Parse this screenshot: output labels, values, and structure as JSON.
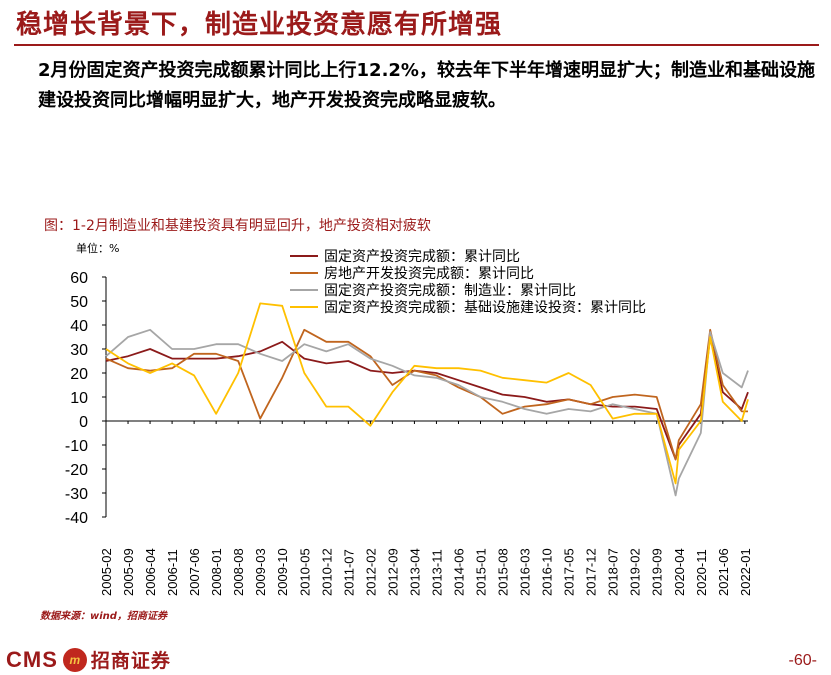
{
  "slide": {
    "title": "稳增长背景下，制造业投资意愿有所增强",
    "lead": "2月份固定资产投资完成额累计同比上行12.2%，较去年下半年增速明显扩大；制造业和基础设施建设投资同比增幅明显扩大，地产开发投资完成略显疲软。",
    "figure_caption": "图：1-2月制造业和基建投资具有明显回升，地产投资相对疲软",
    "unit_label": "单位：%",
    "source": "数据来源：wind，招商证券",
    "logo_text": "CMS",
    "logo_mark_text": "m",
    "logo_cn": "招商证券",
    "page_number": "-60-"
  },
  "colors": {
    "brand": "#9b1a1a",
    "total": "#8b1a1a",
    "realestate": "#c0651e",
    "manufacturing": "#a6a6a6",
    "infrastructure": "#ffc000"
  },
  "chart_data": {
    "type": "line",
    "title": "",
    "xlabel": "",
    "ylabel": "单位：%",
    "ylim": [
      -40,
      60
    ],
    "yticks": [
      -40,
      -30,
      -20,
      -10,
      0,
      10,
      20,
      30,
      40,
      50,
      60
    ],
    "x_tick_labels": [
      "2005-02",
      "2005-09",
      "2006-04",
      "2006-11",
      "2007-06",
      "2008-01",
      "2008-08",
      "2009-03",
      "2009-10",
      "2010-05",
      "2010-12",
      "2011-07",
      "2012-02",
      "2012-09",
      "2013-04",
      "2013-11",
      "2014-06",
      "2015-01",
      "2015-08",
      "2016-03",
      "2016-10",
      "2017-05",
      "2017-12",
      "2018-07",
      "2019-02",
      "2019-09",
      "2020-04",
      "2020-11",
      "2021-06",
      "2022-01"
    ],
    "x_start": "2005-02",
    "x_end": "2022-02",
    "legend_position": "top",
    "grid": false,
    "series": [
      {
        "name": "固定资产投资完成额：累计同比",
        "color_key": "total",
        "points": [
          [
            "2005-02",
            25
          ],
          [
            "2005-09",
            27
          ],
          [
            "2006-04",
            30
          ],
          [
            "2006-11",
            26
          ],
          [
            "2007-06",
            26
          ],
          [
            "2008-01",
            26
          ],
          [
            "2008-08",
            27
          ],
          [
            "2009-03",
            29
          ],
          [
            "2009-10",
            33
          ],
          [
            "2010-05",
            26
          ],
          [
            "2010-12",
            24
          ],
          [
            "2011-07",
            25
          ],
          [
            "2012-02",
            21
          ],
          [
            "2012-09",
            20
          ],
          [
            "2013-04",
            21
          ],
          [
            "2013-11",
            20
          ],
          [
            "2014-06",
            17
          ],
          [
            "2015-01",
            14
          ],
          [
            "2015-08",
            11
          ],
          [
            "2016-03",
            10
          ],
          [
            "2016-10",
            8
          ],
          [
            "2017-05",
            9
          ],
          [
            "2017-12",
            7
          ],
          [
            "2018-07",
            6
          ],
          [
            "2019-02",
            6
          ],
          [
            "2019-09",
            5
          ],
          [
            "2020-03",
            -16
          ],
          [
            "2020-04",
            -10
          ],
          [
            "2020-11",
            3
          ],
          [
            "2021-02",
            35
          ],
          [
            "2021-06",
            12
          ],
          [
            "2021-12",
            5
          ],
          [
            "2022-02",
            12
          ]
        ]
      },
      {
        "name": "房地产开发投资完成额：累计同比",
        "color_key": "realestate",
        "points": [
          [
            "2005-02",
            26
          ],
          [
            "2005-09",
            22
          ],
          [
            "2006-04",
            21
          ],
          [
            "2006-11",
            22
          ],
          [
            "2007-06",
            28
          ],
          [
            "2008-01",
            28
          ],
          [
            "2008-08",
            25
          ],
          [
            "2009-03",
            1
          ],
          [
            "2009-10",
            18
          ],
          [
            "2010-05",
            38
          ],
          [
            "2010-12",
            33
          ],
          [
            "2011-07",
            33
          ],
          [
            "2012-02",
            27
          ],
          [
            "2012-09",
            15
          ],
          [
            "2013-04",
            21
          ],
          [
            "2013-11",
            19
          ],
          [
            "2014-06",
            14
          ],
          [
            "2015-01",
            10
          ],
          [
            "2015-08",
            3
          ],
          [
            "2016-03",
            6
          ],
          [
            "2016-10",
            7
          ],
          [
            "2017-05",
            9
          ],
          [
            "2017-12",
            7
          ],
          [
            "2018-07",
            10
          ],
          [
            "2019-02",
            11
          ],
          [
            "2019-09",
            10
          ],
          [
            "2020-03",
            -16
          ],
          [
            "2020-04",
            -8
          ],
          [
            "2020-11",
            7
          ],
          [
            "2021-02",
            38
          ],
          [
            "2021-06",
            15
          ],
          [
            "2021-12",
            4
          ],
          [
            "2022-02",
            4
          ]
        ]
      },
      {
        "name": "固定资产投资完成额：制造业：累计同比",
        "color_key": "manufacturing",
        "points": [
          [
            "2005-02",
            27
          ],
          [
            "2005-09",
            35
          ],
          [
            "2006-04",
            38
          ],
          [
            "2006-11",
            30
          ],
          [
            "2007-06",
            30
          ],
          [
            "2008-01",
            32
          ],
          [
            "2008-08",
            32
          ],
          [
            "2009-03",
            28
          ],
          [
            "2009-10",
            25
          ],
          [
            "2010-05",
            32
          ],
          [
            "2010-12",
            29
          ],
          [
            "2011-07",
            32
          ],
          [
            "2012-02",
            26
          ],
          [
            "2012-09",
            23
          ],
          [
            "2013-04",
            19
          ],
          [
            "2013-11",
            18
          ],
          [
            "2014-06",
            15
          ],
          [
            "2015-01",
            10
          ],
          [
            "2015-08",
            8
          ],
          [
            "2016-03",
            5
          ],
          [
            "2016-10",
            3
          ],
          [
            "2017-05",
            5
          ],
          [
            "2017-12",
            4
          ],
          [
            "2018-07",
            7
          ],
          [
            "2019-02",
            5
          ],
          [
            "2019-09",
            3
          ],
          [
            "2020-03",
            -31
          ],
          [
            "2020-04",
            -24
          ],
          [
            "2020-11",
            -5
          ],
          [
            "2021-02",
            37
          ],
          [
            "2021-06",
            20
          ],
          [
            "2021-12",
            14
          ],
          [
            "2022-02",
            21
          ]
        ]
      },
      {
        "name": "固定资产投资完成额：基础设施建设投资：累计同比",
        "color_key": "infrastructure",
        "points": [
          [
            "2005-02",
            30
          ],
          [
            "2005-09",
            24
          ],
          [
            "2006-04",
            20
          ],
          [
            "2006-11",
            24
          ],
          [
            "2007-06",
            19
          ],
          [
            "2008-01",
            3
          ],
          [
            "2008-08",
            20
          ],
          [
            "2009-03",
            49
          ],
          [
            "2009-10",
            48
          ],
          [
            "2010-05",
            20
          ],
          [
            "2010-12",
            6
          ],
          [
            "2011-07",
            6
          ],
          [
            "2012-02",
            -2
          ],
          [
            "2012-09",
            12
          ],
          [
            "2013-04",
            23
          ],
          [
            "2013-11",
            22
          ],
          [
            "2014-06",
            22
          ],
          [
            "2015-01",
            21
          ],
          [
            "2015-08",
            18
          ],
          [
            "2016-03",
            17
          ],
          [
            "2016-10",
            16
          ],
          [
            "2017-05",
            20
          ],
          [
            "2017-12",
            15
          ],
          [
            "2018-07",
            1
          ],
          [
            "2019-02",
            3
          ],
          [
            "2019-09",
            3
          ],
          [
            "2020-03",
            -26
          ],
          [
            "2020-04",
            -12
          ],
          [
            "2020-11",
            0
          ],
          [
            "2021-02",
            35
          ],
          [
            "2021-06",
            8
          ],
          [
            "2021-12",
            0
          ],
          [
            "2022-02",
            9
          ]
        ]
      }
    ]
  }
}
